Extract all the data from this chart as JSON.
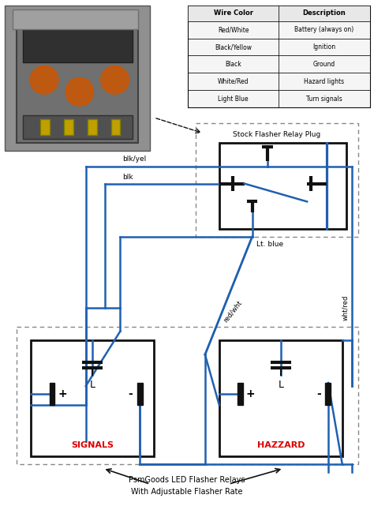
{
  "bg_color": "#ffffff",
  "wire_color": "#2060b0",
  "black_color": "#111111",
  "dashed_border_color": "#888888",
  "red_label_color": "#dd0000",
  "photo_colors": {
    "outer": "#b0b0b0",
    "inner_dark": "#333333",
    "inner_orange": "#cc6600",
    "inner_mid": "#666666"
  },
  "table": {
    "headers": [
      "Wire Color",
      "Description"
    ],
    "rows": [
      [
        "Red/White",
        "Battery (always on)"
      ],
      [
        "Black/Yellow",
        "Ignition"
      ],
      [
        "Black",
        "Ground"
      ],
      [
        "White/Red",
        "Hazard lights"
      ],
      [
        "Light Blue",
        "Turn signals"
      ]
    ]
  },
  "labels": {
    "blk_yel": "blk/yel",
    "blk": "blk",
    "lt_blue": "Lt. blue",
    "red_wht": "red/wht",
    "wht_red": "wht/red",
    "stock_plug": "Stock Flasher Relay Plug",
    "signals": "SIGNALS",
    "hazzard": "HAZZARD",
    "psm_line1": "PsmGoods LED Flasher Relays",
    "psm_line2": "With Adjustable Flasher Rate"
  }
}
